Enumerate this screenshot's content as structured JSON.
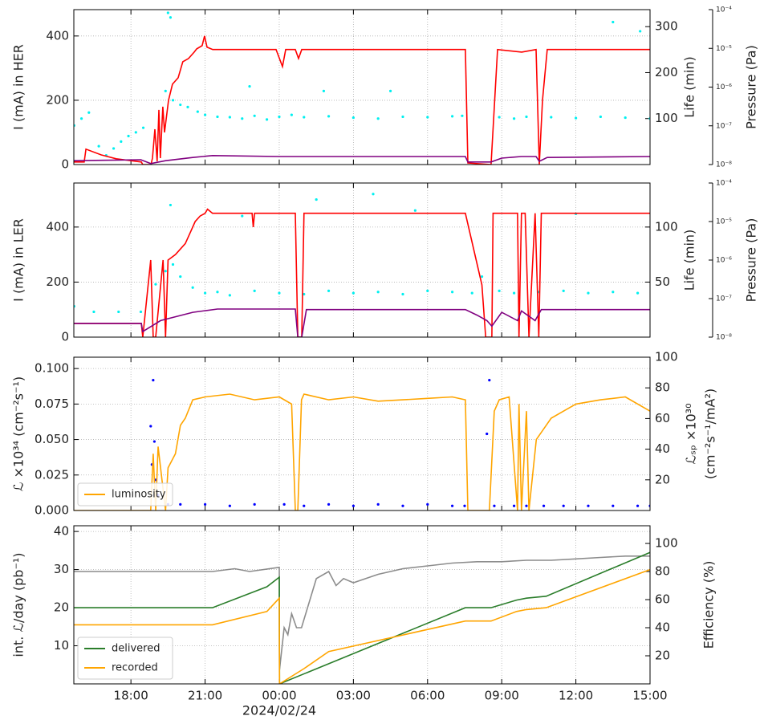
{
  "chart_data": [
    {
      "type": "line",
      "ylabel": "I (mA) in HER",
      "y2label": "Life (min)",
      "y3label": "Pressure (Pa)",
      "ylim": [
        0,
        482
      ],
      "yticks": [
        0,
        200,
        400
      ],
      "y2lim": [
        0,
        337
      ],
      "y2ticks": [
        100,
        200,
        300
      ],
      "y3lim": [
        1e-08,
        0.0001
      ],
      "y3scale": "log",
      "y3ticks": [
        {
          "value": 1e-08,
          "label": "10⁻⁸"
        },
        {
          "value": 1e-07,
          "label": "10⁻⁷"
        },
        {
          "value": 1e-06,
          "label": "10⁻⁶"
        },
        {
          "value": 1e-05,
          "label": "10⁻⁵"
        },
        {
          "value": 0.0001,
          "label": "10⁻⁴"
        }
      ],
      "grid": true,
      "series": [
        {
          "color": "#00f0f0",
          "mode": "markers",
          "axis": "y2",
          "x": [
            -8.3,
            -8.0,
            -7.7,
            -7.3,
            -7.0,
            -6.7,
            -6.4,
            -6.1,
            -5.8,
            -5.5,
            -4.6,
            -4.3,
            -4.0,
            -3.7,
            -3.3,
            -3.0,
            -2.5,
            -2.0,
            -1.5,
            -1.0,
            -0.5,
            0.0,
            0.5,
            1.0,
            2.0,
            3.0,
            4.0,
            5.0,
            6.0,
            7.0,
            7.4,
            8.9,
            9.5,
            10.0,
            11.0,
            12.0,
            13.0,
            14.0,
            15.0,
            -4.5,
            -4.4,
            -1.2,
            1.8,
            4.5,
            13.5,
            14.6
          ],
          "values": [
            85,
            100,
            113,
            40,
            20,
            35,
            50,
            62,
            70,
            80,
            160,
            140,
            130,
            125,
            115,
            108,
            104,
            103,
            100,
            106,
            98,
            104,
            108,
            103,
            105,
            102,
            100,
            104,
            103,
            105,
            106,
            103,
            100,
            104,
            103,
            101,
            104,
            102,
            100,
            330,
            320,
            170,
            160,
            160,
            310,
            290
          ]
        },
        {
          "color": "#ff0000",
          "mode": "lines",
          "x": [
            -8.31,
            -7.89,
            -7.82,
            -7.2,
            -6.6,
            -6.0,
            -5.58,
            -5.52,
            -5.19,
            -5.13,
            -5.03,
            -4.94,
            -4.87,
            -4.81,
            -4.71,
            -4.64,
            -4.48,
            -4.32,
            -4.09,
            -3.9,
            -3.67,
            -3.44,
            -3.34,
            -3.12,
            -3.02,
            -2.92,
            -2.69,
            -0.13,
            0.13,
            0.26,
            0.65,
            0.78,
            0.91,
            7.53,
            7.63,
            8.57,
            8.83,
            9.81,
            10.39,
            10.52,
            10.65,
            10.84,
            15.0
          ],
          "values": [
            8,
            8,
            48,
            30,
            18,
            12,
            8,
            0,
            0,
            20,
            110,
            10,
            170,
            20,
            180,
            100,
            200,
            250,
            270,
            320,
            330,
            350,
            360,
            370,
            400,
            365,
            358,
            358,
            305,
            358,
            358,
            330,
            358,
            358,
            5,
            0,
            358,
            350,
            358,
            0,
            200,
            358,
            358
          ]
        },
        {
          "color": "#800080",
          "mode": "lines",
          "x": [
            -8.31,
            -6.5,
            -5.6,
            -5.2,
            -4.6,
            -3.5,
            -2.7,
            0,
            7.53,
            7.63,
            8.57,
            9.0,
            9.8,
            10.39,
            10.52,
            10.84,
            15.0
          ],
          "values": [
            12,
            14,
            15,
            3,
            12,
            22,
            28,
            25,
            25,
            8,
            8,
            20,
            25,
            25,
            10,
            22,
            25
          ]
        }
      ]
    },
    {
      "type": "line",
      "ylabel": "I (mA) in LER",
      "y2label": "Life (min)",
      "y3label": "Pressure (Pa)",
      "ylim": [
        0,
        560
      ],
      "yticks": [
        0,
        200,
        400
      ],
      "y2lim": [
        0,
        140
      ],
      "y2ticks": [
        50,
        100
      ],
      "y3lim": [
        1e-08,
        0.0001
      ],
      "y3scale": "log",
      "y3ticks": [
        {
          "value": 1e-08,
          "label": "10⁻⁸"
        },
        {
          "value": 1e-07,
          "label": "10⁻⁷"
        },
        {
          "value": 1e-06,
          "label": "10⁻⁶"
        },
        {
          "value": 1e-05,
          "label": "10⁻⁵"
        },
        {
          "value": 0.0001,
          "label": "10⁻⁴"
        }
      ],
      "grid": true,
      "series": [
        {
          "color": "#00f0f0",
          "mode": "markers",
          "axis": "y2",
          "x": [
            -8.3,
            -7.5,
            -6.5,
            -5.6,
            -5.0,
            -4.6,
            -4.3,
            -4.0,
            -3.5,
            -3.0,
            -2.5,
            -2.0,
            -1.0,
            0.0,
            1.0,
            2.0,
            3.0,
            4.0,
            5.0,
            6.0,
            7.0,
            7.8,
            8.2,
            8.9,
            9.5,
            10.5,
            11.5,
            12.5,
            13.5,
            14.5,
            -4.4,
            -1.5,
            1.5,
            3.8,
            5.5,
            12.0
          ],
          "values": [
            28,
            23,
            23,
            23,
            48,
            60,
            66,
            55,
            45,
            40,
            41,
            38,
            42,
            40,
            39,
            42,
            40,
            41,
            39,
            42,
            41,
            40,
            55,
            42,
            40,
            41,
            42,
            40,
            41,
            40,
            120,
            110,
            125,
            130,
            115,
            112
          ]
        },
        {
          "color": "#ff0000",
          "mode": "lines",
          "x": [
            -8.31,
            -5.58,
            -5.52,
            -5.2,
            -5.1,
            -5.0,
            -4.7,
            -4.6,
            -4.5,
            -4.2,
            -3.8,
            -3.6,
            -3.4,
            -3.2,
            -3.0,
            -2.9,
            -2.7,
            -1.1,
            -1.05,
            -1.0,
            0.65,
            0.75,
            0.91,
            1.0,
            7.53,
            8.2,
            8.35,
            8.6,
            8.65,
            9.64,
            9.7,
            9.8,
            9.95,
            10.1,
            10.35,
            10.5,
            10.6,
            15.0
          ],
          "values": [
            50,
            50,
            0,
            280,
            0,
            0,
            280,
            0,
            280,
            300,
            340,
            380,
            420,
            440,
            450,
            465,
            450,
            450,
            400,
            450,
            450,
            0,
            0,
            450,
            450,
            190,
            0,
            0,
            450,
            450,
            0,
            450,
            450,
            0,
            450,
            0,
            450,
            450
          ]
        },
        {
          "color": "#800080",
          "mode": "lines",
          "x": [
            -8.31,
            -5.58,
            -5.52,
            -4.8,
            -3.5,
            -2.5,
            0.65,
            0.75,
            0.91,
            1.1,
            7.53,
            8.0,
            8.4,
            8.6,
            9.0,
            9.64,
            9.8,
            10.35,
            10.6,
            15.0
          ],
          "values": [
            50,
            50,
            20,
            60,
            90,
            102,
            102,
            0,
            0,
            100,
            100,
            80,
            60,
            40,
            90,
            60,
            95,
            60,
            100,
            100
          ]
        }
      ]
    },
    {
      "type": "line",
      "ylabel": "ℒ ×10³⁴ (cm⁻²s⁻¹)",
      "y2label": [
        "ℒₛₚ ×10³⁰",
        "(cm⁻²s⁻¹/mA²)"
      ],
      "ylim": [
        0,
        0.108
      ],
      "yticks": [
        {
          "value": 0,
          "label": "0.000"
        },
        {
          "value": 0.025,
          "label": "0.025"
        },
        {
          "value": 0.05,
          "label": "0.050"
        },
        {
          "value": 0.075,
          "label": "0.075"
        },
        {
          "value": 0.1,
          "label": "0.100"
        }
      ],
      "y2lim": [
        0,
        100
      ],
      "y2ticks": [
        20,
        40,
        60,
        80,
        100
      ],
      "grid": true,
      "legend": "lower left",
      "series": [
        {
          "color": "#0000ff",
          "mode": "markers",
          "axis": "y2",
          "x": [
            -5.2,
            -5.15,
            -5.1,
            -5.05,
            -5.0,
            -4.9,
            -4.5,
            -4.0,
            -3.0,
            -2.0,
            -1.0,
            0.2,
            1.0,
            2.0,
            3.0,
            4.0,
            5.0,
            6.0,
            7.0,
            7.5,
            8.4,
            8.5,
            8.7,
            9.5,
            10.0,
            10.7,
            11.5,
            12.5,
            13.5,
            14.5,
            15.0
          ],
          "values": [
            55,
            30,
            85,
            45,
            20,
            10,
            4,
            4,
            4,
            3,
            4,
            4,
            3,
            4,
            3,
            4,
            3,
            4,
            3,
            3,
            50,
            85,
            3,
            3,
            3,
            3,
            3,
            3,
            3,
            3,
            3
          ]
        },
        {
          "name": "luminosity",
          "color": "#ffa500",
          "mode": "lines",
          "x": [
            -8.31,
            -5.2,
            -5.1,
            -5.0,
            -4.9,
            -4.6,
            -4.5,
            -4.2,
            -4.0,
            -3.8,
            -3.5,
            -3.0,
            -2.0,
            -1.0,
            0.0,
            0.5,
            0.65,
            0.75,
            0.9,
            1.0,
            2.0,
            3.0,
            4.0,
            5.0,
            6.0,
            7.0,
            7.53,
            7.63,
            8.3,
            8.5,
            8.7,
            8.9,
            9.3,
            9.64,
            9.7,
            9.8,
            10.0,
            10.1,
            10.4,
            10.6,
            11.0,
            11.5,
            12.0,
            13.0,
            14.0,
            15.0
          ],
          "values": [
            0,
            0,
            0.04,
            0,
            0.045,
            0,
            0.03,
            0.04,
            0.06,
            0.065,
            0.078,
            0.08,
            0.082,
            0.078,
            0.08,
            0.075,
            0,
            0,
            0.078,
            0.082,
            0.078,
            0.08,
            0.077,
            0.078,
            0.079,
            0.08,
            0.078,
            0,
            0,
            0,
            0.07,
            0.078,
            0.08,
            0,
            0.075,
            0,
            0.07,
            0,
            0.05,
            0.055,
            0.065,
            0.07,
            0.075,
            0.078,
            0.08,
            0.07
          ]
        }
      ]
    },
    {
      "type": "line",
      "ylabel": "int. ℒ/day (pb⁻¹)",
      "y2label": "Efficiency (%)",
      "xlabel": "2024/02/24",
      "xlim": [
        -8.31,
        15.0
      ],
      "xticks": [
        {
          "value": -6,
          "label": "18:00"
        },
        {
          "value": -3,
          "label": "21:00"
        },
        {
          "value": 0,
          "label": "00:00"
        },
        {
          "value": 3,
          "label": "03:00"
        },
        {
          "value": 6,
          "label": "06:00"
        },
        {
          "value": 9,
          "label": "09:00"
        },
        {
          "value": 12,
          "label": "12:00"
        },
        {
          "value": 15,
          "label": "15:00"
        }
      ],
      "ylim": [
        0,
        41.5
      ],
      "yticks": [
        10,
        20,
        30,
        40
      ],
      "y2lim": [
        0,
        112.6
      ],
      "y2ticks": [
        20,
        40,
        60,
        80,
        100
      ],
      "grid": true,
      "legend": "lower left",
      "series": [
        {
          "color": "#8c8c8c",
          "mode": "lines",
          "axis": "y2",
          "x": [
            -8.31,
            -2.7,
            -1.8,
            -1.2,
            0.0,
            0.01,
            0.2,
            0.35,
            0.5,
            0.7,
            0.9,
            1.5,
            2.0,
            2.3,
            2.6,
            3.0,
            4.0,
            5.0,
            6.0,
            7.0,
            8.0,
            9.0,
            10.0,
            11.0,
            12.0,
            13.0,
            14.0,
            15.0
          ],
          "values": [
            80,
            80,
            82,
            80,
            83,
            10,
            40,
            35,
            50,
            40,
            40,
            75,
            80,
            70,
            75,
            72,
            78,
            82,
            84,
            86,
            87,
            87,
            88,
            88,
            89,
            90,
            91,
            91
          ]
        },
        {
          "name": "delivered",
          "color": "#2a7d2a",
          "mode": "lines",
          "x": [
            -8.31,
            -2.7,
            -0.5,
            0.0,
            0.01,
            7.53,
            8.57,
            9.6,
            10.0,
            10.8,
            15.0
          ],
          "values": [
            20,
            20,
            25.5,
            28,
            0,
            20,
            20,
            22,
            22.5,
            23,
            34.5
          ]
        },
        {
          "name": "recorded",
          "color": "#ffa500",
          "mode": "lines",
          "x": [
            -8.31,
            -2.7,
            -0.5,
            0.0,
            0.01,
            1.0,
            2.0,
            7.53,
            8.57,
            9.6,
            10.0,
            10.8,
            15.0
          ],
          "values": [
            15.5,
            15.5,
            19,
            22.5,
            0,
            4,
            8.5,
            16.5,
            16.5,
            19,
            19.5,
            20,
            30
          ]
        }
      ]
    }
  ]
}
